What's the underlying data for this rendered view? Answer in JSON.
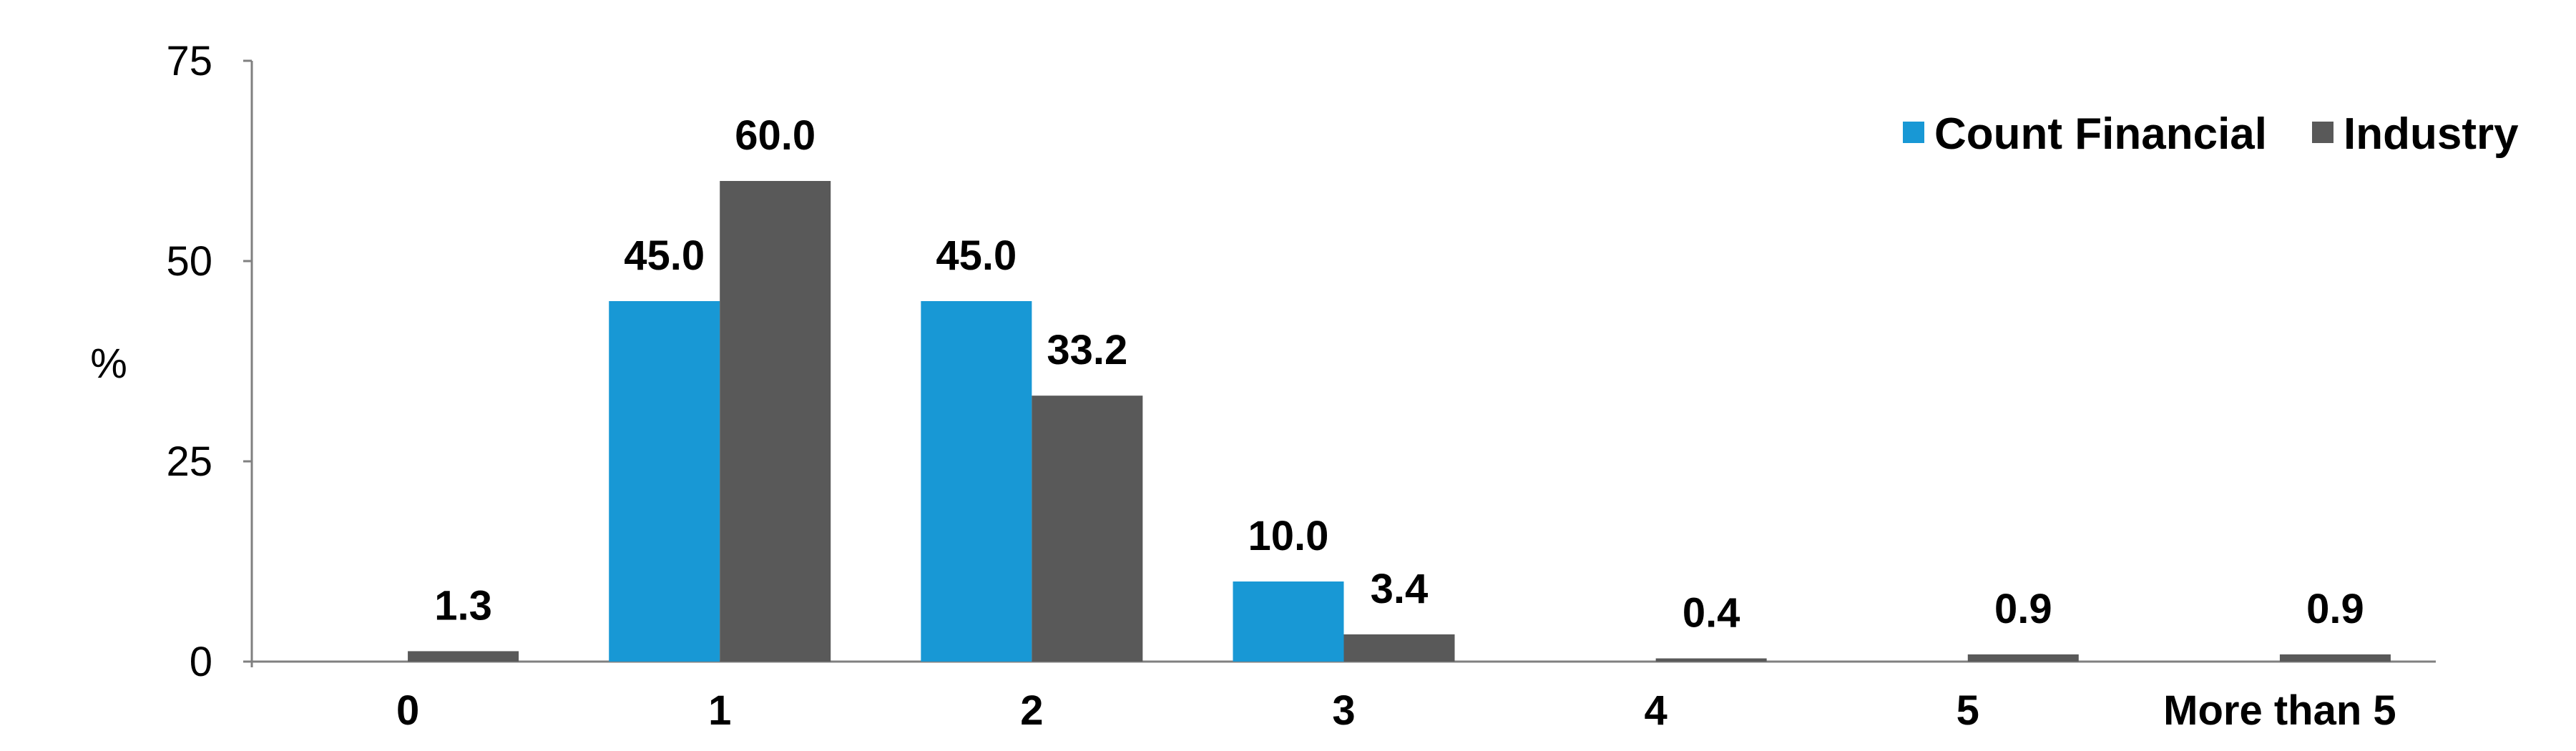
{
  "chart_data": {
    "type": "bar",
    "ylabel": "%",
    "xlabel": "",
    "ylim": [
      0,
      75
    ],
    "yticks": [
      "0",
      "25",
      "50",
      "75"
    ],
    "categories": [
      "0",
      "1",
      "2",
      "3",
      "4",
      "5",
      "More than 5"
    ],
    "series": [
      {
        "name": "Count Financial",
        "color": "#1898D5",
        "values": [
          0,
          45.0,
          45.0,
          10.0,
          0,
          0,
          0
        ],
        "labels": [
          "",
          "45.0",
          "45.0",
          "10.0",
          "",
          "",
          ""
        ]
      },
      {
        "name": "Industry",
        "color": "#595959",
        "values": [
          1.3,
          60.0,
          33.2,
          3.4,
          0.4,
          0.9,
          0.9
        ],
        "labels": [
          "1.3",
          "60.0",
          "33.2",
          "3.4",
          "0.4",
          "0.9",
          "0.9"
        ]
      }
    ],
    "legend_position": "top-right",
    "grid": false
  }
}
